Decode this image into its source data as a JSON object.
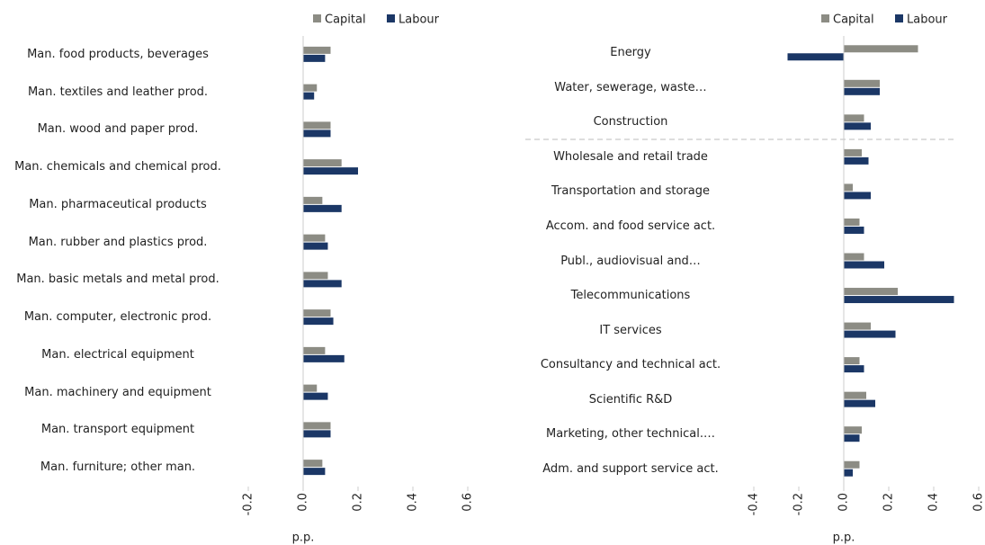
{
  "chart_data": [
    {
      "type": "bar",
      "orientation": "horizontal",
      "xlabel": "p.p.",
      "categories": [
        "Man. food products, beverages",
        "Man. textiles and leather prod.",
        "Man. wood and paper prod.",
        "Man. chemicals and chemical prod.",
        "Man.  pharmaceutical products",
        "Man. rubber and plastics prod.",
        "Man. basic metals and metal prod.",
        "Man. computer, electronic prod.",
        "Man. electrical equipment",
        "Man. machinery and equipment",
        "Man. transport equipment",
        "Man. furniture; other man."
      ],
      "series": [
        {
          "name": "Capital",
          "color": "#8c8c84",
          "values": [
            0.1,
            0.05,
            0.1,
            0.14,
            0.07,
            0.08,
            0.09,
            0.1,
            0.08,
            0.05,
            0.1,
            0.07
          ]
        },
        {
          "name": "Labour",
          "color": "#1b3766",
          "values": [
            0.08,
            0.04,
            0.1,
            0.2,
            0.14,
            0.09,
            0.14,
            0.11,
            0.15,
            0.09,
            0.1,
            0.08
          ]
        }
      ],
      "xlim": [
        -0.2,
        0.6
      ],
      "xticks": [
        -0.2,
        {
          "value": 0,
          "label": "0.0"
        },
        0.2,
        0.4,
        0.6
      ]
    },
    {
      "type": "bar",
      "orientation": "horizontal",
      "xlabel": "p.p.",
      "categories": [
        "Energy",
        "Water, sewerage, waste…",
        "Construction",
        "Wholesale and retail trade",
        "Transportation and storage",
        "Accom. and food service act.",
        "Publ., audiovisual and…",
        "Telecommunications",
        "IT services",
        "Consultancy and technical act.",
        "Scientific R&D",
        "Marketing, other technical.…",
        "Adm. and support service act."
      ],
      "series": [
        {
          "name": "Capital",
          "color": "#8c8c84",
          "values": [
            0.33,
            0.16,
            0.09,
            0.08,
            0.04,
            0.07,
            0.09,
            0.24,
            0.12,
            0.07,
            0.1,
            0.08,
            0.07
          ]
        },
        {
          "name": "Labour",
          "color": "#1b3766",
          "values": [
            -0.25,
            0.16,
            0.12,
            0.11,
            0.12,
            0.09,
            0.18,
            0.49,
            0.23,
            0.09,
            0.14,
            0.07,
            0.04
          ]
        }
      ],
      "xlim": [
        -0.4,
        0.6
      ],
      "xticks": [
        -0.4,
        -0.2,
        {
          "value": 0,
          "label": "0.0"
        },
        0.2,
        0.4,
        0.6
      ]
    }
  ]
}
